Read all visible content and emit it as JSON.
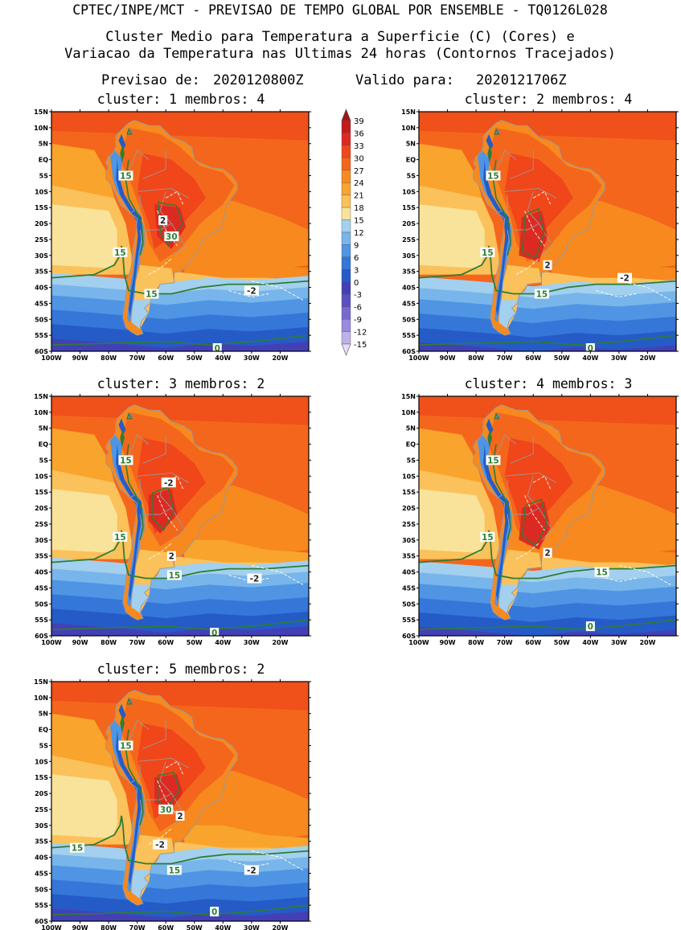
{
  "header": {
    "line1": "CPTEC/INPE/MCT - PREVISAO DE TEMPO GLOBAL POR ENSEMBLE - TQ0126L028",
    "line2": "Cluster Medio para Temperatura a Superficie (C) (Cores) e",
    "line3": "Variacao da Temperatura nas Ultimas 24 horas (Contornos Tracejados)",
    "line4_label": "Previsao de:",
    "line4_forecast": "2020120800Z",
    "line4_valid_label": "Valido para:",
    "line4_valid": "2020121706Z"
  },
  "axes": {
    "lat_ticks": [
      "15N",
      "10N",
      "5N",
      "EQ",
      "5S",
      "10S",
      "15S",
      "20S",
      "25S",
      "30S",
      "35S",
      "40S",
      "45S",
      "50S",
      "55S",
      "60S"
    ],
    "lon_ticks": [
      "100W",
      "90W",
      "80W",
      "70W",
      "60W",
      "50W",
      "40W",
      "30W",
      "20W"
    ],
    "lat_range": [
      -60,
      15
    ],
    "lon_range": [
      -100,
      -10
    ]
  },
  "colorbar": {
    "labels": [
      "39",
      "36",
      "33",
      "30",
      "27",
      "24",
      "21",
      "18",
      "15",
      "12",
      "9",
      "6",
      "3",
      "0",
      "-3",
      "-6",
      "-9",
      "-12",
      "-15"
    ],
    "colors": [
      "#a31414",
      "#c41c1c",
      "#dc2a22",
      "#f0461a",
      "#f4661c",
      "#f7891f",
      "#f9a42c",
      "#fbc15a",
      "#f9e39a",
      "#a3d0ef",
      "#78b5ea",
      "#4f95e4",
      "#3576d9",
      "#255bc7",
      "#4340b6",
      "#5a50c2",
      "#7869cf",
      "#9a8adc",
      "#bfb0e8",
      "#e5ddf6"
    ]
  },
  "panels": [
    {
      "title": "cluster:  1   membros:  4",
      "labels": [
        {
          "t": "15",
          "lon": -74,
          "lat": -5
        },
        {
          "t": "15",
          "lon": -76,
          "lat": -29
        },
        {
          "t": "15",
          "lon": -65,
          "lat": -42
        },
        {
          "t": "2",
          "lon": -61,
          "lat": -19
        },
        {
          "t": "30",
          "lon": -58,
          "lat": -24
        },
        {
          "t": "-2",
          "lon": -30,
          "lat": -41
        },
        {
          "t": "0",
          "lon": -42,
          "lat": -59
        }
      ]
    },
    {
      "title": "cluster:  2   membros:  4",
      "labels": [
        {
          "t": "15",
          "lon": -74,
          "lat": -5
        },
        {
          "t": "15",
          "lon": -76,
          "lat": -29
        },
        {
          "t": "15",
          "lon": -57,
          "lat": -42
        },
        {
          "t": "2",
          "lon": -55,
          "lat": -33
        },
        {
          "t": "-2",
          "lon": -28,
          "lat": -37
        },
        {
          "t": "0",
          "lon": -40,
          "lat": -59
        }
      ]
    },
    {
      "title": "cluster:  3   membros:  2",
      "labels": [
        {
          "t": "15",
          "lon": -74,
          "lat": -5
        },
        {
          "t": "15",
          "lon": -76,
          "lat": -29
        },
        {
          "t": "15",
          "lon": -57,
          "lat": -41
        },
        {
          "t": "-2",
          "lon": -59,
          "lat": -12
        },
        {
          "t": "2",
          "lon": -58,
          "lat": -35
        },
        {
          "t": "-2",
          "lon": -29,
          "lat": -42
        },
        {
          "t": "0",
          "lon": -43,
          "lat": -59
        }
      ]
    },
    {
      "title": "cluster:  4   membros:  3",
      "labels": [
        {
          "t": "15",
          "lon": -74,
          "lat": -5
        },
        {
          "t": "15",
          "lon": -76,
          "lat": -29
        },
        {
          "t": "15",
          "lon": -36,
          "lat": -40
        },
        {
          "t": "2",
          "lon": -55,
          "lat": -34
        },
        {
          "t": "0",
          "lon": -40,
          "lat": -57
        }
      ]
    },
    {
      "title": "cluster:  5   membros:  2",
      "labels": [
        {
          "t": "15",
          "lon": -74,
          "lat": -5
        },
        {
          "t": "15",
          "lon": -91,
          "lat": -37
        },
        {
          "t": "15",
          "lon": -57,
          "lat": -44
        },
        {
          "t": "30",
          "lon": -60,
          "lat": -25
        },
        {
          "t": "2",
          "lon": -55,
          "lat": -27
        },
        {
          "t": "-2",
          "lon": -62,
          "lat": -36
        },
        {
          "t": "-2",
          "lon": -30,
          "lat": -44
        },
        {
          "t": "0",
          "lon": -43,
          "lat": -57
        }
      ]
    }
  ]
}
